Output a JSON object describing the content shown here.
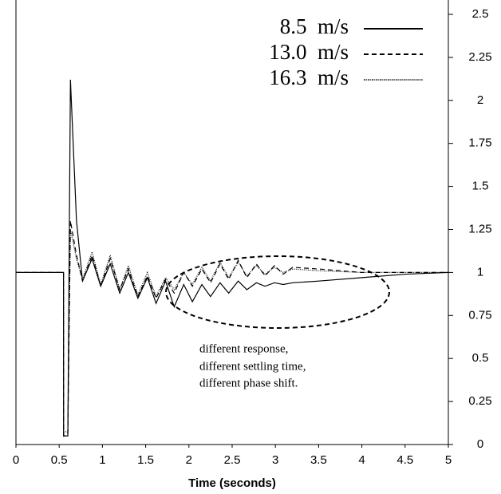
{
  "chart_data": {
    "type": "line",
    "x": [
      0,
      0.55,
      0.551,
      0.6,
      0.63,
      0.7,
      0.77,
      0.88,
      0.98,
      1.09,
      1.2,
      1.3,
      1.41,
      1.52,
      1.62,
      1.73,
      1.83,
      1.94,
      2.04,
      2.15,
      2.25,
      2.36,
      2.46,
      2.57,
      2.67,
      2.78,
      2.88,
      2.99,
      3.09,
      3.2,
      3.5,
      4.0,
      4.5,
      5.0
    ],
    "series": [
      {
        "name": "8.5  m/s",
        "color": "#000000",
        "dash": "none",
        "values": [
          1,
          1,
          0.05,
          0.05,
          2.12,
          1.3,
          0.95,
          1.08,
          0.92,
          1.05,
          0.88,
          1.0,
          0.85,
          0.97,
          0.82,
          0.95,
          0.8,
          0.93,
          0.83,
          0.93,
          0.86,
          0.94,
          0.88,
          0.95,
          0.9,
          0.94,
          0.92,
          0.94,
          0.93,
          0.94,
          0.95,
          0.97,
          0.99,
          1
        ]
      },
      {
        "name": "13.0  m/s",
        "color": "#000000",
        "dash": "6 4",
        "values": [
          1,
          1,
          0.05,
          0.07,
          1.3,
          1.1,
          0.95,
          1.1,
          0.92,
          1.08,
          0.9,
          1.02,
          0.86,
          0.98,
          0.85,
          0.96,
          0.88,
          1.0,
          0.92,
          1.02,
          0.94,
          1.05,
          0.96,
          1.07,
          0.97,
          1.05,
          0.98,
          1.04,
          0.99,
          1.03,
          1.02,
          1.0,
          1.0,
          1.0
        ]
      },
      {
        "name": "16.3  m/s",
        "color": "#000000",
        "dash": "1 1.5",
        "values": [
          1,
          1,
          0.07,
          0.08,
          1.25,
          1.08,
          0.96,
          1.12,
          0.93,
          1.1,
          0.9,
          1.04,
          0.87,
          1.0,
          0.86,
          0.97,
          0.9,
          1.0,
          0.93,
          1.03,
          0.95,
          1.06,
          0.97,
          1.06,
          0.98,
          1.04,
          0.99,
          1.03,
          1.0,
          1.02,
          1.01,
          1.0,
          1.0,
          1.0
        ]
      }
    ],
    "xlabel": "Time (seconds)",
    "xlim": [
      0,
      5
    ],
    "xticks": [
      0,
      0.5,
      1,
      1.5,
      2,
      2.5,
      3,
      3.5,
      4,
      4.5,
      5
    ],
    "ylim": [
      0,
      2.5
    ],
    "yticks": [
      0,
      0.25,
      0.5,
      0.75,
      1,
      1.25,
      1.5,
      1.75,
      2,
      2.25,
      2.5
    ],
    "annotation": [
      "different response,",
      "different settling time,",
      "different phase shift."
    ]
  }
}
